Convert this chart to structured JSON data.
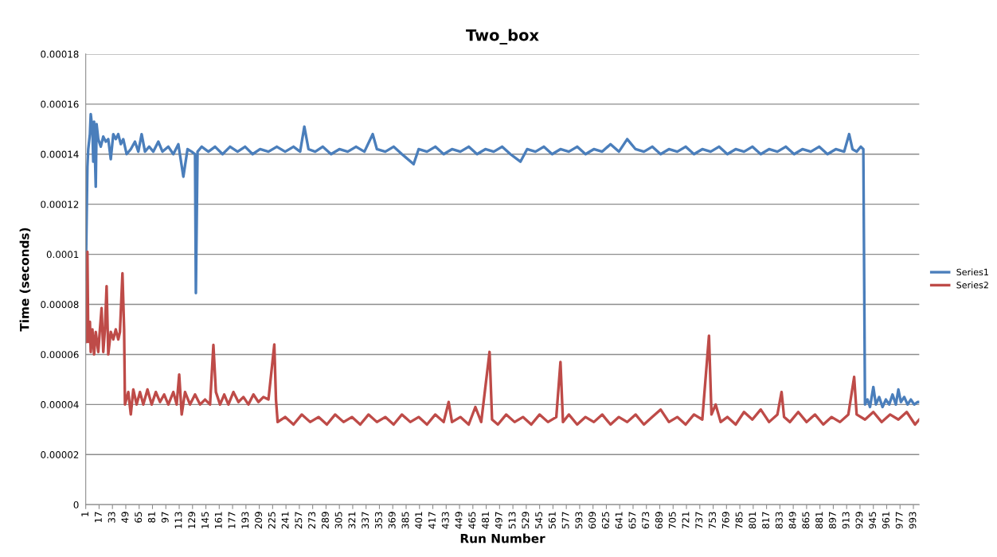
{
  "chart_data": {
    "type": "line",
    "title": "Two_box",
    "xlabel": "Run Number",
    "ylabel": "Time (seconds)",
    "xlim": [
      1,
      1000
    ],
    "xticks": [
      1,
      17,
      33,
      49,
      65,
      81,
      97,
      113,
      129,
      145,
      161,
      177,
      193,
      209,
      225,
      241,
      257,
      273,
      289,
      305,
      321,
      337,
      353,
      369,
      385,
      401,
      417,
      433,
      449,
      465,
      481,
      497,
      513,
      529,
      545,
      561,
      577,
      593,
      609,
      625,
      641,
      657,
      673,
      689,
      705,
      721,
      737,
      753,
      769,
      785,
      801,
      817,
      833,
      849,
      865,
      881,
      897,
      913,
      929,
      945,
      961,
      977,
      993
    ],
    "ylim": [
      0,
      0.00018
    ],
    "yticks": [
      {
        "value": 0,
        "label": "0"
      },
      {
        "value": 2e-05,
        "label": "0.00002"
      },
      {
        "value": 4e-05,
        "label": "0.00004"
      },
      {
        "value": 6e-05,
        "label": "0.00006"
      },
      {
        "value": 8e-05,
        "label": "0.00008"
      },
      {
        "value": 0.0001,
        "label": "0.0001"
      },
      {
        "value": 0.00012,
        "label": "0.00012"
      },
      {
        "value": 0.00014,
        "label": "0.00014"
      },
      {
        "value": 0.00016,
        "label": "0.00016"
      },
      {
        "value": 0.00018,
        "label": "0.00018"
      }
    ],
    "grid": "y",
    "legend": "right",
    "marker": "none",
    "line_style": "solid",
    "series": [
      {
        "name": "Series1",
        "color": "#4a7ebb",
        "x": [
          1,
          3,
          4,
          6,
          7,
          9,
          10,
          11,
          13,
          14,
          16,
          19,
          22,
          25,
          28,
          31,
          34,
          37,
          40,
          43,
          46,
          50,
          55,
          60,
          64,
          68,
          72,
          77,
          82,
          88,
          93,
          100,
          106,
          112,
          118,
          123,
          128,
          132,
          133,
          135,
          140,
          148,
          156,
          165,
          174,
          183,
          192,
          201,
          210,
          220,
          230,
          240,
          250,
          258,
          263,
          268,
          276,
          285,
          295,
          305,
          315,
          325,
          335,
          345,
          350,
          360,
          370,
          380,
          394,
          400,
          410,
          420,
          430,
          440,
          450,
          460,
          470,
          480,
          490,
          500,
          510,
          522,
          530,
          540,
          550,
          560,
          570,
          580,
          590,
          600,
          610,
          620,
          630,
          640,
          650,
          660,
          670,
          680,
          690,
          700,
          710,
          720,
          730,
          740,
          750,
          760,
          770,
          780,
          790,
          800,
          810,
          820,
          830,
          840,
          850,
          860,
          870,
          880,
          890,
          900,
          910,
          916,
          920,
          925,
          930,
          933,
          935,
          938,
          941,
          945,
          948,
          952,
          956,
          960,
          964,
          968,
          972,
          975,
          978,
          982,
          986,
          990,
          994,
          998,
          1000
        ],
        "values": [
          9e-05,
          0.000135,
          0.000142,
          0.000148,
          0.000156,
          0.00015,
          0.000137,
          0.000153,
          0.000127,
          0.000152,
          0.000146,
          0.000143,
          0.000147,
          0.000145,
          0.000146,
          0.000138,
          0.000148,
          0.000146,
          0.000148,
          0.000144,
          0.000146,
          0.00014,
          0.000142,
          0.000145,
          0.000141,
          0.000148,
          0.000141,
          0.000143,
          0.000141,
          0.000145,
          0.000141,
          0.000143,
          0.00014,
          0.000144,
          0.000131,
          0.000142,
          0.000141,
          0.00014,
          8.45e-05,
          0.000141,
          0.000143,
          0.000141,
          0.000143,
          0.00014,
          0.000143,
          0.000141,
          0.000143,
          0.00014,
          0.000142,
          0.000141,
          0.000143,
          0.000141,
          0.000143,
          0.000141,
          0.000151,
          0.000142,
          0.000141,
          0.000143,
          0.00014,
          0.000142,
          0.000141,
          0.000143,
          0.000141,
          0.000148,
          0.000142,
          0.000141,
          0.000143,
          0.00014,
          0.000136,
          0.000142,
          0.000141,
          0.000143,
          0.00014,
          0.000142,
          0.000141,
          0.000143,
          0.00014,
          0.000142,
          0.000141,
          0.000143,
          0.00014,
          0.000137,
          0.000142,
          0.000141,
          0.000143,
          0.00014,
          0.000142,
          0.000141,
          0.000143,
          0.00014,
          0.000142,
          0.000141,
          0.000144,
          0.000141,
          0.000146,
          0.000142,
          0.000141,
          0.000143,
          0.00014,
          0.000142,
          0.000141,
          0.000143,
          0.00014,
          0.000142,
          0.000141,
          0.000143,
          0.00014,
          0.000142,
          0.000141,
          0.000143,
          0.00014,
          0.000142,
          0.000141,
          0.000143,
          0.00014,
          0.000142,
          0.000141,
          0.000143,
          0.00014,
          0.000142,
          0.000141,
          0.000148,
          0.000142,
          0.000141,
          0.000143,
          0.000142,
          4e-05,
          4.2e-05,
          3.9e-05,
          4.7e-05,
          4e-05,
          4.3e-05,
          3.9e-05,
          4.2e-05,
          4e-05,
          4.4e-05,
          4e-05,
          4.6e-05,
          4.1e-05,
          4.3e-05,
          4e-05,
          4.2e-05,
          4e-05,
          4.1e-05,
          4.1e-05
        ]
      },
      {
        "name": "Series2",
        "color": "#be4b48",
        "x": [
          1,
          2,
          3,
          4,
          6,
          7,
          9,
          11,
          13,
          16,
          18,
          20,
          22,
          24,
          26,
          28,
          31,
          34,
          37,
          40,
          42,
          45,
          47,
          48,
          52,
          55,
          58,
          62,
          66,
          70,
          75,
          80,
          85,
          90,
          95,
          100,
          106,
          110,
          113,
          116,
          120,
          126,
          132,
          138,
          144,
          150,
          154,
          157,
          162,
          167,
          172,
          178,
          184,
          190,
          196,
          202,
          208,
          214,
          220,
          227,
          229,
          231,
          240,
          250,
          260,
          270,
          280,
          290,
          300,
          310,
          320,
          330,
          340,
          350,
          360,
          370,
          380,
          390,
          400,
          410,
          420,
          430,
          436,
          440,
          450,
          460,
          468,
          475,
          485,
          488,
          495,
          505,
          515,
          525,
          535,
          545,
          555,
          565,
          570,
          573,
          580,
          590,
          600,
          610,
          620,
          630,
          640,
          650,
          660,
          670,
          680,
          690,
          700,
          710,
          720,
          730,
          740,
          748,
          751,
          756,
          762,
          770,
          780,
          790,
          800,
          810,
          820,
          830,
          835,
          838,
          845,
          855,
          865,
          875,
          885,
          895,
          905,
          915,
          922,
          925,
          935,
          945,
          955,
          965,
          975,
          985,
          995,
          1000
        ],
        "values": [
          6.5e-05,
          7e-05,
          0.000101,
          6.5e-05,
          7.3e-05,
          6.1e-05,
          7e-05,
          6e-05,
          6.9e-05,
          6.1e-05,
          7e-05,
          7.85e-05,
          6.1e-05,
          7e-05,
          8.73e-05,
          6e-05,
          6.9e-05,
          6.6e-05,
          7e-05,
          6.6e-05,
          6.9e-05,
          9.24e-05,
          7e-05,
          4e-05,
          4.5e-05,
          3.6e-05,
          4.6e-05,
          4e-05,
          4.5e-05,
          4e-05,
          4.6e-05,
          4e-05,
          4.5e-05,
          4.1e-05,
          4.4e-05,
          4e-05,
          4.5e-05,
          4e-05,
          5.2e-05,
          3.6e-05,
          4.5e-05,
          4e-05,
          4.4e-05,
          4e-05,
          4.2e-05,
          4e-05,
          6.38e-05,
          4.5e-05,
          4e-05,
          4.4e-05,
          4e-05,
          4.5e-05,
          4.1e-05,
          4.3e-05,
          4e-05,
          4.4e-05,
          4.1e-05,
          4.3e-05,
          4.2e-05,
          6.4e-05,
          4.2e-05,
          3.3e-05,
          3.5e-05,
          3.2e-05,
          3.6e-05,
          3.3e-05,
          3.5e-05,
          3.2e-05,
          3.6e-05,
          3.3e-05,
          3.5e-05,
          3.2e-05,
          3.6e-05,
          3.3e-05,
          3.5e-05,
          3.2e-05,
          3.6e-05,
          3.3e-05,
          3.5e-05,
          3.2e-05,
          3.6e-05,
          3.3e-05,
          4.1e-05,
          3.3e-05,
          3.5e-05,
          3.2e-05,
          3.9e-05,
          3.3e-05,
          6.1e-05,
          3.4e-05,
          3.2e-05,
          3.6e-05,
          3.3e-05,
          3.5e-05,
          3.2e-05,
          3.6e-05,
          3.3e-05,
          3.5e-05,
          5.7e-05,
          3.3e-05,
          3.6e-05,
          3.2e-05,
          3.5e-05,
          3.3e-05,
          3.6e-05,
          3.2e-05,
          3.5e-05,
          3.3e-05,
          3.6e-05,
          3.2e-05,
          3.5e-05,
          3.8e-05,
          3.3e-05,
          3.5e-05,
          3.2e-05,
          3.6e-05,
          3.4e-05,
          6.75e-05,
          3.6e-05,
          4e-05,
          3.3e-05,
          3.5e-05,
          3.2e-05,
          3.7e-05,
          3.4e-05,
          3.8e-05,
          3.3e-05,
          3.6e-05,
          4.5e-05,
          3.5e-05,
          3.3e-05,
          3.7e-05,
          3.3e-05,
          3.6e-05,
          3.2e-05,
          3.5e-05,
          3.3e-05,
          3.6e-05,
          5.1e-05,
          3.6e-05,
          3.4e-05,
          3.7e-05,
          3.3e-05,
          3.6e-05,
          3.4e-05,
          3.7e-05,
          3.2e-05,
          3.4e-05
        ]
      }
    ]
  }
}
